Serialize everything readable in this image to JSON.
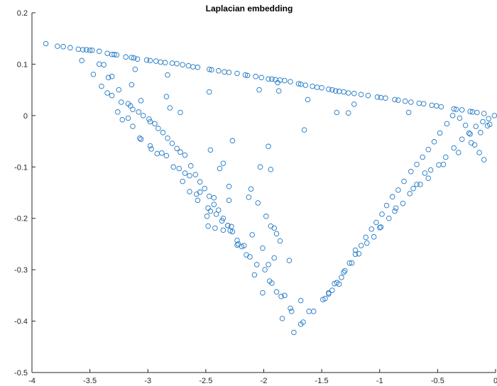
{
  "colors": {
    "marker": "#1f77c4",
    "axis": "#262626",
    "background": "#ffffff"
  },
  "chart_data": {
    "type": "scatter",
    "title": "Laplacian embedding",
    "xlabel": "",
    "ylabel": "",
    "xlim": [
      -4,
      0
    ],
    "ylim": [
      -0.5,
      0.2
    ],
    "xticks": [
      -4,
      -3.5,
      -3,
      -2.5,
      -2,
      -1.5,
      -1,
      -0.5,
      0
    ],
    "xtick_labels": [
      "-4",
      "-3.5",
      "-3",
      "-2.5",
      "-2",
      "-1.5",
      "-1",
      "-0.5",
      "0"
    ],
    "yticks": [
      -0.5,
      -0.4,
      -0.3,
      -0.2,
      -0.1,
      0,
      0.1,
      0.2
    ],
    "ytick_labels": [
      "-0.5",
      "-0.4",
      "-0.3",
      "-0.2",
      "-0.1",
      "0",
      "0.1",
      "0.2"
    ],
    "grid": false,
    "marker": "circle-open",
    "points": [
      [
        -3.88,
        0.14
      ],
      [
        -3.78,
        0.135
      ],
      [
        -3.73,
        0.134
      ],
      [
        -3.67,
        0.132
      ],
      [
        -3.6,
        0.129
      ],
      [
        -3.56,
        0.128
      ],
      [
        -3.53,
        0.128
      ],
      [
        -3.5,
        0.127
      ],
      [
        -3.48,
        0.127
      ],
      [
        -3.42,
        0.125
      ],
      [
        -3.35,
        0.121
      ],
      [
        -3.31,
        0.119
      ],
      [
        -3.29,
        0.119
      ],
      [
        -3.27,
        0.118
      ],
      [
        -3.19,
        0.114
      ],
      [
        -3.14,
        0.113
      ],
      [
        -3.12,
        0.112
      ],
      [
        -3.09,
        0.11
      ],
      [
        -3.01,
        0.108
      ],
      [
        -2.98,
        0.107
      ],
      [
        -2.93,
        0.106
      ],
      [
        -2.89,
        0.104
      ],
      [
        -2.85,
        0.103
      ],
      [
        -2.79,
        0.102
      ],
      [
        -2.75,
        0.101
      ],
      [
        -2.7,
        0.099
      ],
      [
        -2.65,
        0.097
      ],
      [
        -2.61,
        0.095
      ],
      [
        -2.57,
        0.094
      ],
      [
        -2.47,
        0.09
      ],
      [
        -2.45,
        0.089
      ],
      [
        -2.39,
        0.087
      ],
      [
        -2.34,
        0.085
      ],
      [
        -2.3,
        0.084
      ],
      [
        -2.23,
        0.082
      ],
      [
        -2.16,
        0.079
      ],
      [
        -2.14,
        0.078
      ],
      [
        -2.07,
        0.076
      ],
      [
        -2.02,
        0.074
      ],
      [
        -1.96,
        0.071
      ],
      [
        -1.93,
        0.071
      ],
      [
        -1.9,
        0.07
      ],
      [
        -1.86,
        0.069
      ],
      [
        -1.82,
        0.068
      ],
      [
        -1.77,
        0.066
      ],
      [
        -1.7,
        0.062
      ],
      [
        -1.68,
        0.061
      ],
      [
        -1.64,
        0.059
      ],
      [
        -1.58,
        0.057
      ],
      [
        -1.54,
        0.055
      ],
      [
        -1.5,
        0.054
      ],
      [
        -1.44,
        0.051
      ],
      [
        -1.41,
        0.05
      ],
      [
        -1.38,
        0.048
      ],
      [
        -1.35,
        0.047
      ],
      [
        -1.31,
        0.046
      ],
      [
        -1.27,
        0.044
      ],
      [
        -1.22,
        0.043
      ],
      [
        -1.16,
        0.041
      ],
      [
        -1.1,
        0.039
      ],
      [
        -1.02,
        0.036
      ],
      [
        -0.99,
        0.035
      ],
      [
        -0.95,
        0.034
      ],
      [
        -0.87,
        0.031
      ],
      [
        -0.84,
        0.03
      ],
      [
        -0.78,
        0.028
      ],
      [
        -0.73,
        0.026
      ],
      [
        -0.66,
        0.024
      ],
      [
        -0.62,
        0.023
      ],
      [
        -0.55,
        0.02
      ],
      [
        -0.51,
        0.019
      ],
      [
        -0.47,
        0.017
      ],
      [
        -0.36,
        0.013
      ],
      [
        -0.34,
        0.012
      ],
      [
        -0.29,
        0.011
      ],
      [
        -0.22,
        0.008
      ],
      [
        -0.2,
        0.007
      ],
      [
        -0.16,
        0.006
      ],
      [
        -0.1,
        0.004
      ],
      [
        -0.01,
        0.0
      ],
      [
        -3.57,
        0.107
      ],
      [
        -3.47,
        0.08
      ],
      [
        -3.42,
        0.1
      ],
      [
        -3.38,
        0.099
      ],
      [
        -3.31,
        0.076
      ],
      [
        -3.34,
        0.074
      ],
      [
        -3.11,
        0.09
      ],
      [
        -2.83,
        0.079
      ],
      [
        -2.47,
        0.046
      ],
      [
        -2.04,
        0.05
      ],
      [
        -1.88,
        0.064
      ],
      [
        -1.87,
        0.048
      ],
      [
        -1.62,
        0.031
      ],
      [
        -1.37,
        0.006
      ],
      [
        -1.27,
        0.005
      ],
      [
        -1.22,
        0.022
      ],
      [
        -0.75,
        0.006
      ],
      [
        -2.13,
        -0.159
      ],
      [
        -1.65,
        -0.028
      ],
      [
        -1.96,
        -0.06
      ],
      [
        -3.4,
        0.057
      ],
      [
        -3.35,
        0.044
      ],
      [
        -3.31,
        0.039
      ],
      [
        -3.25,
        0.05
      ],
      [
        -3.23,
        0.026
      ],
      [
        -3.17,
        0.023
      ],
      [
        -3.15,
        0.019
      ],
      [
        -3.13,
        0.012
      ],
      [
        -3.08,
        0.007
      ],
      [
        -3.04,
        0.0
      ],
      [
        -2.99,
        -0.007
      ],
      [
        -2.94,
        -0.016
      ],
      [
        -2.91,
        -0.025
      ],
      [
        -2.87,
        -0.033
      ],
      [
        -2.83,
        -0.044
      ],
      [
        -2.79,
        -0.054
      ],
      [
        -2.75,
        -0.064
      ],
      [
        -2.72,
        -0.071
      ],
      [
        -2.68,
        -0.077
      ],
      [
        -2.63,
        -0.098
      ],
      [
        -2.59,
        -0.115
      ],
      [
        -2.55,
        -0.129
      ],
      [
        -2.51,
        -0.142
      ],
      [
        -2.47,
        -0.157
      ],
      [
        -2.43,
        -0.173
      ],
      [
        -2.39,
        -0.184
      ],
      [
        -2.35,
        -0.2
      ],
      [
        -2.31,
        -0.214
      ],
      [
        -2.27,
        -0.226
      ],
      [
        -2.23,
        -0.243
      ],
      [
        -3.26,
        0.007
      ],
      [
        -3.17,
        -0.005
      ],
      [
        -3.07,
        -0.044
      ],
      [
        -2.98,
        -0.059
      ],
      [
        -2.92,
        -0.074
      ],
      [
        -2.84,
        -0.078
      ],
      [
        -2.73,
        -0.103
      ],
      [
        -2.68,
        -0.112
      ],
      [
        -2.64,
        -0.117
      ],
      [
        -2.58,
        -0.153
      ],
      [
        -2.55,
        -0.149
      ],
      [
        -2.48,
        -0.18
      ],
      [
        -2.46,
        -0.186
      ],
      [
        -2.41,
        -0.192
      ],
      [
        -2.36,
        -0.205
      ],
      [
        -2.31,
        -0.214
      ],
      [
        -2.23,
        -0.252
      ],
      [
        -2.19,
        -0.255
      ],
      [
        -2.15,
        -0.271
      ],
      [
        -2.06,
        -0.29
      ],
      [
        -3.22,
        -0.008
      ],
      [
        -3.13,
        -0.021
      ],
      [
        -3.06,
        -0.046
      ],
      [
        -2.97,
        -0.065
      ],
      [
        -2.88,
        -0.073
      ],
      [
        -2.78,
        -0.1
      ],
      [
        -2.7,
        -0.128
      ],
      [
        -2.64,
        -0.148
      ],
      [
        -2.57,
        -0.165
      ],
      [
        -2.48,
        -0.215
      ],
      [
        -2.42,
        -0.219
      ],
      [
        -2.35,
        -0.223
      ],
      [
        -2.29,
        -0.224
      ],
      [
        -2.22,
        -0.25
      ],
      [
        -2.17,
        -0.253
      ],
      [
        -2.12,
        -0.275
      ],
      [
        -2.08,
        -0.31
      ],
      [
        -2.01,
        -0.345
      ],
      [
        -1.99,
        -0.3
      ],
      [
        -1.96,
        -0.29
      ],
      [
        -3.14,
        0.06
      ],
      [
        -3.06,
        0.029
      ],
      [
        -2.98,
        -0.012
      ],
      [
        -2.84,
        0.037
      ],
      [
        -2.81,
        0.015
      ],
      [
        -2.72,
        0.006
      ],
      [
        -2.46,
        -0.067
      ],
      [
        -2.27,
        -0.049
      ],
      [
        -2.38,
        -0.103
      ],
      [
        -2.35,
        -0.093
      ],
      [
        -2.3,
        -0.138
      ],
      [
        -2.11,
        -0.143
      ],
      [
        -2.05,
        -0.17
      ],
      [
        -1.98,
        -0.196
      ],
      [
        -1.94,
        -0.215
      ],
      [
        -1.91,
        -0.219
      ],
      [
        -1.89,
        -0.23
      ],
      [
        -2.01,
        -0.258
      ],
      [
        -1.91,
        -0.277
      ],
      [
        -1.78,
        -0.282
      ],
      [
        -1.95,
        -0.322
      ],
      [
        -1.93,
        -0.326
      ],
      [
        -1.89,
        -0.343
      ],
      [
        -1.85,
        -0.352
      ],
      [
        -1.82,
        -0.35
      ],
      [
        -1.77,
        -0.375
      ],
      [
        -1.76,
        -0.381
      ],
      [
        -1.68,
        -0.36
      ],
      [
        -1.68,
        -0.406
      ],
      [
        -1.66,
        -0.402
      ],
      [
        -1.74,
        -0.422
      ],
      [
        -1.84,
        -0.395
      ],
      [
        -2.03,
        -0.1
      ],
      [
        -1.94,
        -0.105
      ],
      [
        -2.3,
        -0.165
      ],
      [
        -2.43,
        -0.16
      ],
      [
        -2.49,
        -0.196
      ],
      [
        -2.28,
        -0.216
      ],
      [
        -2.1,
        -0.232
      ],
      [
        -1.86,
        -0.244
      ],
      [
        -1.44,
        -0.347
      ],
      [
        -1.41,
        -0.34
      ],
      [
        -1.37,
        -0.325
      ],
      [
        -1.33,
        -0.315
      ],
      [
        -1.3,
        -0.302
      ],
      [
        -1.26,
        -0.287
      ],
      [
        -1.21,
        -0.27
      ],
      [
        -1.16,
        -0.253
      ],
      [
        -1.12,
        -0.237
      ],
      [
        -1.07,
        -0.221
      ],
      [
        -1.03,
        -0.208
      ],
      [
        -0.98,
        -0.192
      ],
      [
        -0.94,
        -0.175
      ],
      [
        -0.89,
        -0.158
      ],
      [
        -0.84,
        -0.145
      ],
      [
        -0.79,
        -0.128
      ],
      [
        -0.73,
        -0.109
      ],
      [
        -0.68,
        -0.095
      ],
      [
        -0.63,
        -0.081
      ],
      [
        -0.58,
        -0.066
      ],
      [
        -0.53,
        -0.051
      ],
      [
        -0.48,
        -0.034
      ],
      [
        -0.42,
        -0.016
      ],
      [
        -0.37,
        0.0
      ],
      [
        -0.31,
        -0.005
      ],
      [
        -0.26,
        -0.019
      ],
      [
        -0.22,
        -0.036
      ],
      [
        -0.18,
        -0.057
      ],
      [
        -0.14,
        -0.072
      ],
      [
        -0.1,
        -0.086
      ],
      [
        -1.57,
        -0.381
      ],
      [
        -1.49,
        -0.358
      ],
      [
        -1.44,
        -0.345
      ],
      [
        -1.39,
        -0.327
      ],
      [
        -1.31,
        -0.305
      ],
      [
        -1.24,
        -0.287
      ],
      [
        -1.18,
        -0.269
      ],
      [
        -1.11,
        -0.248
      ],
      [
        -1.05,
        -0.236
      ],
      [
        -0.99,
        -0.217
      ],
      [
        -0.92,
        -0.2
      ],
      [
        -0.87,
        -0.186
      ],
      [
        -0.8,
        -0.171
      ],
      [
        -0.74,
        -0.152
      ],
      [
        -0.68,
        -0.134
      ],
      [
        -0.61,
        -0.112
      ],
      [
        -0.56,
        -0.106
      ],
      [
        -0.49,
        -0.096
      ],
      [
        -0.43,
        -0.081
      ],
      [
        -0.36,
        -0.063
      ],
      [
        -0.29,
        -0.046
      ],
      [
        -0.23,
        -0.034
      ],
      [
        -0.17,
        -0.021
      ],
      [
        -0.11,
        -0.012
      ],
      [
        -0.06,
        -0.006
      ],
      [
        -1.61,
        -0.381
      ],
      [
        -1.47,
        -0.356
      ],
      [
        -1.35,
        -0.328
      ],
      [
        -1.21,
        -0.262
      ],
      [
        -1.0,
        -0.218
      ],
      [
        -0.86,
        -0.18
      ],
      [
        -0.71,
        -0.142
      ],
      [
        -0.58,
        -0.122
      ],
      [
        -0.45,
        -0.095
      ],
      [
        -0.32,
        -0.072
      ],
      [
        -0.21,
        -0.053
      ],
      [
        -0.13,
        -0.033
      ],
      [
        -0.07,
        -0.02
      ],
      [
        -0.05,
        -0.017
      ],
      [
        -0.65,
        -0.134
      ]
    ]
  }
}
